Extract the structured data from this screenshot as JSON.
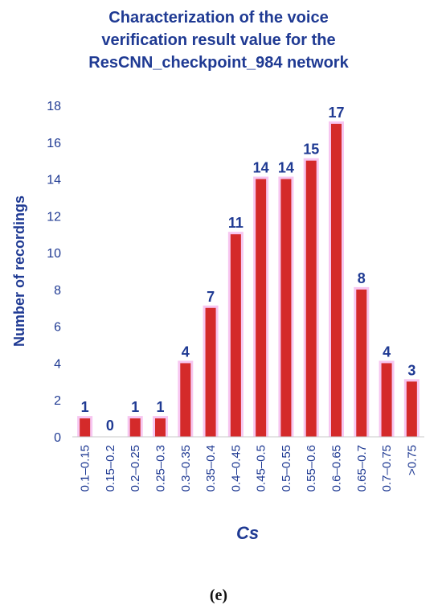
{
  "chart_data": {
    "type": "bar",
    "title_lines": [
      "Characterization of the voice",
      "verification result value for the",
      "ResCNN_checkpoint_984 network"
    ],
    "xlabel": "Cs",
    "ylabel": "Number of recordings",
    "categories": [
      "0.1–0.15",
      "0.15–0.2",
      "0.2–0.25",
      "0.25–0.3",
      "0.3–0.35",
      "0.35–0.4",
      "0.4–0.45",
      "0.45–0.5",
      "0.5–0.55",
      "0.55–0.6",
      "0.6–0.65",
      "0.65–0.7",
      "0.7–0.75",
      ">0.75"
    ],
    "values": [
      1,
      0,
      1,
      1,
      4,
      7,
      11,
      14,
      14,
      15,
      17,
      8,
      4,
      3
    ],
    "ylim": [
      0,
      18
    ],
    "yticks": [
      0,
      2,
      4,
      6,
      8,
      10,
      12,
      14,
      16,
      18
    ],
    "grid": false,
    "bar_color": "#d42a2a",
    "bar_glow_color": "#f7c6f0"
  },
  "caption": "(e)"
}
